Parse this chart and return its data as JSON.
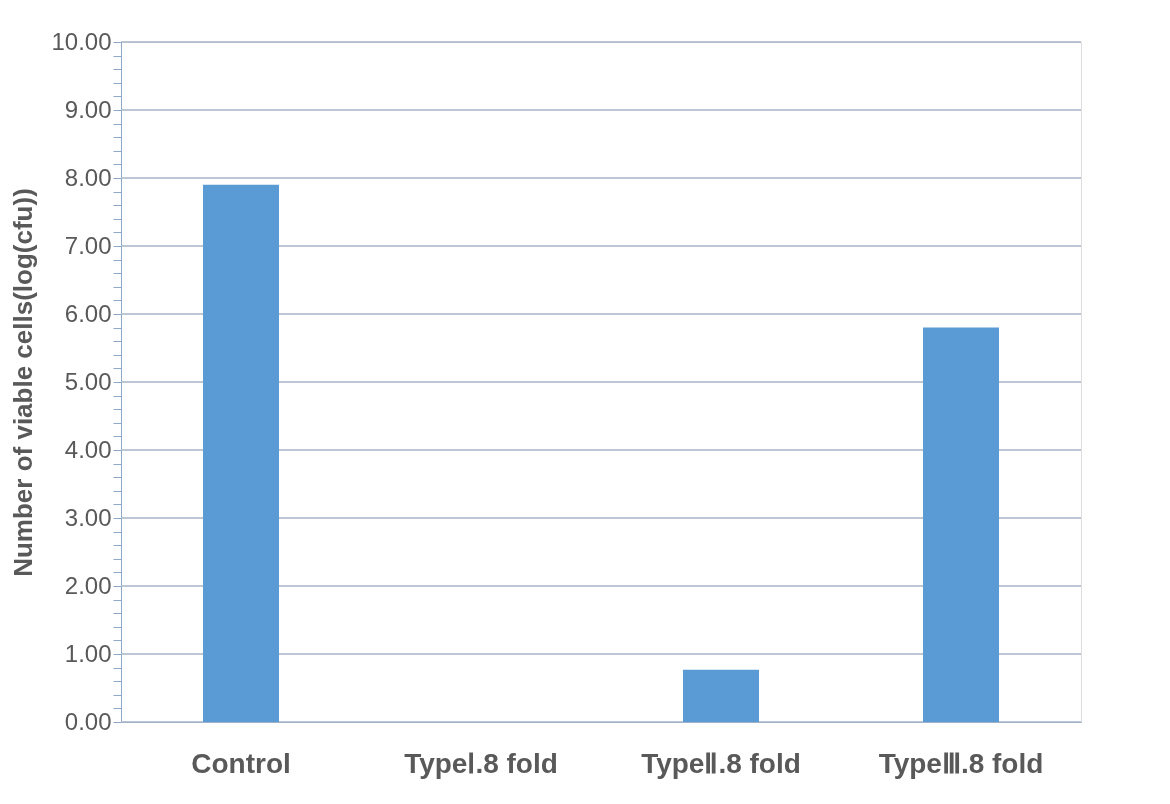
{
  "chart_data": {
    "type": "bar",
    "ylabel": "Number of viable cells(log(cfu))",
    "categories": [
      "Control",
      "TypeⅠ.8 fold",
      "TypeⅡ.8 fold",
      "TypeⅢ.8 fold"
    ],
    "values": [
      7.9,
      0,
      0.77,
      5.8
    ],
    "color": "#5b9bd5",
    "ylim": [
      0,
      10
    ],
    "yticks": [
      {
        "value": 0,
        "label": "0.00"
      },
      {
        "value": 0.2,
        "label": null
      },
      {
        "value": 0.4,
        "label": null
      },
      {
        "value": 0.6,
        "label": null
      },
      {
        "value": 0.8,
        "label": null
      },
      {
        "value": 1,
        "label": "1.00"
      },
      {
        "value": 1.2,
        "label": null
      },
      {
        "value": 1.4,
        "label": null
      },
      {
        "value": 1.6,
        "label": null
      },
      {
        "value": 1.8,
        "label": null
      },
      {
        "value": 2,
        "label": "2.00"
      },
      {
        "value": 2.2,
        "label": null
      },
      {
        "value": 2.4,
        "label": null
      },
      {
        "value": 2.6,
        "label": null
      },
      {
        "value": 2.8,
        "label": null
      },
      {
        "value": 3,
        "label": "3.00"
      },
      {
        "value": 3.2,
        "label": null
      },
      {
        "value": 3.4,
        "label": null
      },
      {
        "value": 3.6,
        "label": null
      },
      {
        "value": 3.8,
        "label": null
      },
      {
        "value": 4,
        "label": "4.00"
      },
      {
        "value": 4.2,
        "label": null
      },
      {
        "value": 4.4,
        "label": null
      },
      {
        "value": 4.6,
        "label": null
      },
      {
        "value": 4.8,
        "label": null
      },
      {
        "value": 5,
        "label": "5.00"
      },
      {
        "value": 5.2,
        "label": null
      },
      {
        "value": 5.4,
        "label": null
      },
      {
        "value": 5.6,
        "label": null
      },
      {
        "value": 5.8,
        "label": null
      },
      {
        "value": 6,
        "label": "6.00"
      },
      {
        "value": 6.2,
        "label": null
      },
      {
        "value": 6.4,
        "label": null
      },
      {
        "value": 6.6,
        "label": null
      },
      {
        "value": 6.8,
        "label": null
      },
      {
        "value": 7,
        "label": "7.00"
      },
      {
        "value": 7.2,
        "label": null
      },
      {
        "value": 7.4,
        "label": null
      },
      {
        "value": 7.6,
        "label": null
      },
      {
        "value": 7.8,
        "label": null
      },
      {
        "value": 8,
        "label": "8.00"
      },
      {
        "value": 8.2,
        "label": null
      },
      {
        "value": 8.4,
        "label": null
      },
      {
        "value": 8.6,
        "label": null
      },
      {
        "value": 8.8,
        "label": null
      },
      {
        "value": 9,
        "label": "9.00"
      },
      {
        "value": 9.2,
        "label": null
      },
      {
        "value": 9.4,
        "label": null
      },
      {
        "value": 9.6,
        "label": null
      },
      {
        "value": 9.8,
        "label": null
      },
      {
        "value": 10,
        "label": "10.00"
      }
    ],
    "grid": "y"
  }
}
